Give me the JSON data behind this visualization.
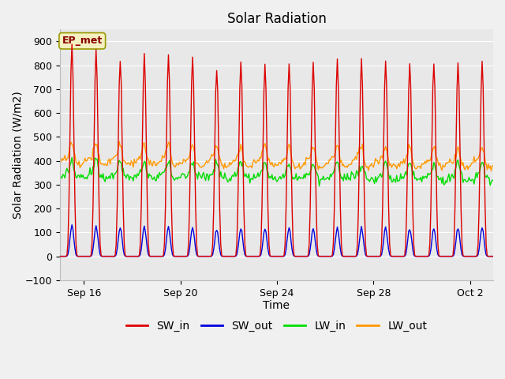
{
  "title": "Solar Radiation",
  "xlabel": "Time",
  "ylabel": "Solar Radiation (W/m2)",
  "ylim": [
    -100,
    950
  ],
  "yticks": [
    -100,
    0,
    100,
    200,
    300,
    400,
    500,
    600,
    700,
    800,
    900
  ],
  "plot_bg_color": "#e8e8e8",
  "fig_bg_color": "#f0f0f0",
  "grid_color": "#ffffff",
  "label_box": "EP_met",
  "label_box_bg": "#f5f0c0",
  "label_box_border": "#999900",
  "series": {
    "SW_in": {
      "color": "#dd0000",
      "lw": 1.0
    },
    "SW_out": {
      "color": "#0000dd",
      "lw": 1.0
    },
    "LW_in": {
      "color": "#00dd00",
      "lw": 1.0
    },
    "LW_out": {
      "color": "#ff9900",
      "lw": 1.0
    }
  },
  "x_tick_labels": [
    "Sep 16",
    "Sep 20",
    "Sep 24",
    "Sep 28",
    "Oct 2"
  ],
  "title_fontsize": 12,
  "axis_label_fontsize": 10,
  "tick_fontsize": 9,
  "legend_fontsize": 10
}
